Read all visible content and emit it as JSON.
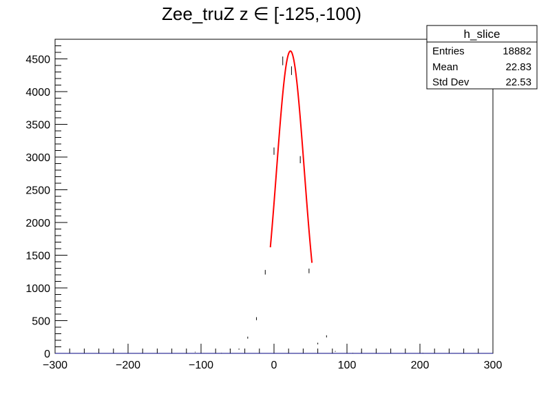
{
  "chart_data": {
    "type": "histogram",
    "title": "Zee_truZ z  ∈ [-125,-100)",
    "xlabel": "",
    "ylabel": "",
    "xlim": [
      -300,
      300
    ],
    "ylim": [
      0,
      4800
    ],
    "x_ticks": [
      -300,
      -200,
      -100,
      0,
      100,
      200,
      300
    ],
    "x_tick_labels": [
      "−300",
      "−200",
      "−100",
      "0",
      "100",
      "200",
      "300"
    ],
    "y_ticks": [
      0,
      500,
      1000,
      1500,
      2000,
      2500,
      3000,
      3500,
      4000,
      4500
    ],
    "y_tick_labels": [
      "0",
      "500",
      "1000",
      "1500",
      "2000",
      "2500",
      "3000",
      "3500",
      "4000",
      "4500"
    ],
    "grid": false,
    "histogram_color": "#000080",
    "fit_color": "#ff0000",
    "bin_width": 12,
    "bins": [
      {
        "x": -120,
        "y": 5
      },
      {
        "x": -108,
        "y": 20
      },
      {
        "x": -96,
        "y": 3
      },
      {
        "x": -72,
        "y": 5
      },
      {
        "x": -60,
        "y": 60
      },
      {
        "x": -48,
        "y": 65
      },
      {
        "x": -36,
        "y": 240
      },
      {
        "x": -24,
        "y": 530
      },
      {
        "x": -12,
        "y": 1240
      },
      {
        "x": 0,
        "y": 3090
      },
      {
        "x": 12,
        "y": 4470
      },
      {
        "x": 24,
        "y": 4320
      },
      {
        "x": 36,
        "y": 2960
      },
      {
        "x": 48,
        "y": 1260
      },
      {
        "x": 60,
        "y": 150
      },
      {
        "x": 72,
        "y": 260
      },
      {
        "x": 84,
        "y": 30
      },
      {
        "x": 108,
        "y": 5
      },
      {
        "x": 120,
        "y": 20
      },
      {
        "x": 204,
        "y": 5
      }
    ],
    "fit": {
      "function": "gaus",
      "amplitude": 4620,
      "mean": 22.5,
      "sigma": 19.0,
      "range": [
        -5,
        52
      ]
    },
    "stats_box": {
      "name": "h_slice",
      "position": "top-right",
      "rows": [
        {
          "label": "Entries",
          "value": "18882"
        },
        {
          "label": "Mean",
          "value": "22.83"
        },
        {
          "label": "Std Dev",
          "value": "22.53"
        }
      ]
    }
  }
}
